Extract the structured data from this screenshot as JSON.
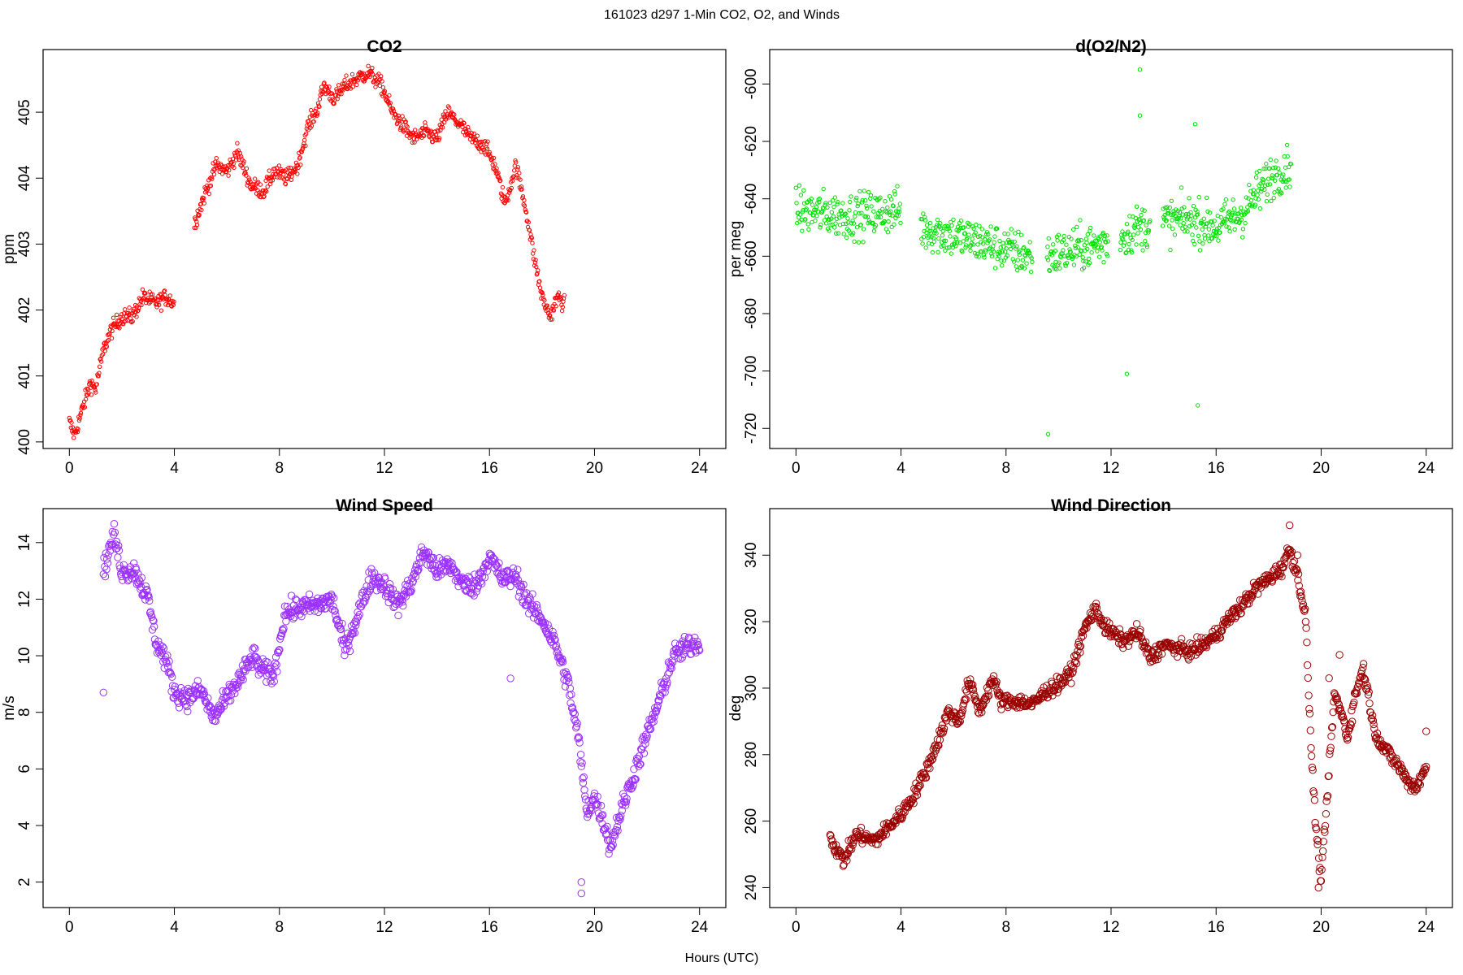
{
  "figure": {
    "title": "161023   d297   1-Min CO2, O2, and Winds",
    "xlabel": "Hours (UTC)"
  },
  "chart_data": [
    {
      "id": "co2",
      "type": "scatter",
      "title": "CO2",
      "xlabel": "",
      "ylabel": "ppm",
      "xlim": [
        -1,
        25
      ],
      "ylim": [
        399.9,
        405.95
      ],
      "xticks": [
        0,
        4,
        8,
        12,
        16,
        20,
        24
      ],
      "yticks": [
        400,
        401,
        402,
        403,
        404,
        405
      ],
      "color": "#ff0000",
      "marker_r": 2.2,
      "dense_count": 900,
      "x_range": [
        0.0,
        18.85
      ],
      "gaps": [
        [
          4.0,
          4.75
        ]
      ],
      "noise": 0.18,
      "profile": [
        [
          0.0,
          400.3
        ],
        [
          0.2,
          400.1
        ],
        [
          0.5,
          400.5
        ],
        [
          0.8,
          400.9
        ],
        [
          1.0,
          400.8
        ],
        [
          1.3,
          401.4
        ],
        [
          1.6,
          401.7
        ],
        [
          2.0,
          401.9
        ],
        [
          2.4,
          401.9
        ],
        [
          2.8,
          402.2
        ],
        [
          3.3,
          402.1
        ],
        [
          3.7,
          402.2
        ],
        [
          4.0,
          402.1
        ],
        [
          4.75,
          403.3
        ],
        [
          5.2,
          403.8
        ],
        [
          5.6,
          404.2
        ],
        [
          6.0,
          404.1
        ],
        [
          6.4,
          404.4
        ],
        [
          6.9,
          403.9
        ],
        [
          7.4,
          403.8
        ],
        [
          7.8,
          404.1
        ],
        [
          8.3,
          404.0
        ],
        [
          8.7,
          404.2
        ],
        [
          9.1,
          404.8
        ],
        [
          9.4,
          405.0
        ],
        [
          9.7,
          405.4
        ],
        [
          10.1,
          405.2
        ],
        [
          10.5,
          405.4
        ],
        [
          10.9,
          405.5
        ],
        [
          11.4,
          405.6
        ],
        [
          11.9,
          405.4
        ],
        [
          12.3,
          405.0
        ],
        [
          12.7,
          404.8
        ],
        [
          13.1,
          404.6
        ],
        [
          13.6,
          404.7
        ],
        [
          14.0,
          404.6
        ],
        [
          14.4,
          405.0
        ],
        [
          14.9,
          404.8
        ],
        [
          15.3,
          404.6
        ],
        [
          15.8,
          404.5
        ],
        [
          16.2,
          404.2
        ],
        [
          16.6,
          403.6
        ],
        [
          17.0,
          404.2
        ],
        [
          17.4,
          403.5
        ],
        [
          17.7,
          402.8
        ],
        [
          18.0,
          402.2
        ],
        [
          18.3,
          401.9
        ],
        [
          18.6,
          402.2
        ],
        [
          18.85,
          402.1
        ]
      ],
      "outliers": []
    },
    {
      "id": "o2n2",
      "type": "scatter",
      "title": "d(O2/N2)",
      "xlabel": "",
      "ylabel": "per meg",
      "xlim": [
        -1,
        25
      ],
      "ylim": [
        -727,
        -588
      ],
      "xticks": [
        0,
        4,
        8,
        12,
        16,
        20,
        24
      ],
      "yticks": [
        -720,
        -700,
        -680,
        -660,
        -640,
        -620,
        -600
      ],
      "color": "#00e000",
      "marker_r": 2.2,
      "dense_count": 900,
      "x_range": [
        0.0,
        18.85
      ],
      "gaps": [
        [
          4.0,
          4.75
        ],
        [
          9.0,
          9.55
        ],
        [
          11.9,
          12.35
        ],
        [
          13.5,
          13.95
        ]
      ],
      "noise": 11,
      "profile": [
        [
          0.0,
          -644
        ],
        [
          2.0,
          -646
        ],
        [
          4.0,
          -644
        ],
        [
          4.75,
          -650
        ],
        [
          7.0,
          -655
        ],
        [
          9.0,
          -660
        ],
        [
          9.55,
          -660
        ],
        [
          11.0,
          -657
        ],
        [
          12.0,
          -655
        ],
        [
          13.0,
          -650
        ],
        [
          14.0,
          -648
        ],
        [
          15.0,
          -647
        ],
        [
          16.0,
          -650
        ],
        [
          17.0,
          -645
        ],
        [
          18.0,
          -633
        ],
        [
          18.85,
          -628
        ]
      ],
      "outliers": [
        [
          13.1,
          -595
        ],
        [
          13.1,
          -611
        ],
        [
          12.6,
          -701
        ],
        [
          9.6,
          -722
        ],
        [
          15.3,
          -712
        ],
        [
          15.2,
          -614
        ]
      ]
    },
    {
      "id": "wspd",
      "type": "scatter",
      "title": "Wind Speed",
      "xlabel": "",
      "ylabel": "m/s",
      "xlim": [
        -1,
        25
      ],
      "ylim": [
        1.1,
        15.2
      ],
      "xticks": [
        0,
        4,
        8,
        12,
        16,
        20,
        24
      ],
      "yticks": [
        2,
        4,
        6,
        8,
        10,
        12,
        14
      ],
      "color": "#9b30ff",
      "marker_r": 4.2,
      "dense_count": 1000,
      "x_range": [
        1.3,
        24.0
      ],
      "gaps": [],
      "noise": 0.55,
      "profile": [
        [
          1.3,
          13.0
        ],
        [
          1.7,
          14.3
        ],
        [
          2.0,
          13.0
        ],
        [
          2.5,
          13.0
        ],
        [
          3.0,
          12.0
        ],
        [
          3.3,
          10.5
        ],
        [
          3.7,
          9.8
        ],
        [
          4.0,
          8.7
        ],
        [
          4.5,
          8.5
        ],
        [
          5.0,
          8.8
        ],
        [
          5.5,
          7.8
        ],
        [
          6.0,
          8.5
        ],
        [
          6.5,
          9.2
        ],
        [
          7.0,
          10.0
        ],
        [
          7.3,
          9.5
        ],
        [
          7.8,
          9.3
        ],
        [
          8.2,
          11.5
        ],
        [
          8.8,
          11.7
        ],
        [
          9.5,
          11.8
        ],
        [
          10.0,
          12.0
        ],
        [
          10.5,
          10.2
        ],
        [
          11.0,
          11.5
        ],
        [
          11.5,
          12.8
        ],
        [
          12.0,
          12.5
        ],
        [
          12.5,
          11.8
        ],
        [
          13.0,
          12.5
        ],
        [
          13.5,
          13.7
        ],
        [
          14.0,
          13.0
        ],
        [
          14.5,
          13.2
        ],
        [
          15.0,
          12.5
        ],
        [
          15.5,
          12.5
        ],
        [
          16.0,
          13.5
        ],
        [
          16.5,
          12.7
        ],
        [
          17.0,
          12.8
        ],
        [
          17.5,
          11.8
        ],
        [
          18.0,
          11.3
        ],
        [
          18.5,
          10.4
        ],
        [
          19.0,
          9.0
        ],
        [
          19.4,
          7.0
        ],
        [
          19.7,
          4.5
        ],
        [
          20.0,
          5.0
        ],
        [
          20.4,
          4.0
        ],
        [
          20.6,
          3.2
        ],
        [
          21.0,
          4.5
        ],
        [
          21.5,
          5.8
        ],
        [
          22.0,
          7.2
        ],
        [
          22.5,
          8.5
        ],
        [
          23.0,
          10.0
        ],
        [
          23.5,
          10.3
        ],
        [
          24.0,
          10.5
        ]
      ],
      "outliers": [
        [
          1.3,
          8.7
        ],
        [
          19.5,
          1.6
        ],
        [
          19.5,
          2.0
        ],
        [
          16.8,
          9.2
        ]
      ]
    },
    {
      "id": "wdir",
      "type": "scatter",
      "title": "Wind Direction",
      "xlabel": "",
      "ylabel": "deg",
      "xlim": [
        -1,
        25
      ],
      "ylim": [
        234,
        354
      ],
      "xticks": [
        0,
        4,
        8,
        12,
        16,
        20,
        24
      ],
      "yticks": [
        240,
        260,
        280,
        300,
        320,
        340
      ],
      "color": "#9b0000",
      "marker_r": 4.2,
      "dense_count": 1000,
      "x_range": [
        1.3,
        24.0
      ],
      "gaps": [],
      "noise": 3.2,
      "profile": [
        [
          1.3,
          255
        ],
        [
          1.8,
          248
        ],
        [
          2.3,
          256
        ],
        [
          3.0,
          254
        ],
        [
          3.5,
          258
        ],
        [
          4.0,
          262
        ],
        [
          4.5,
          268
        ],
        [
          5.0,
          276
        ],
        [
          5.5,
          286
        ],
        [
          5.8,
          293
        ],
        [
          6.2,
          290
        ],
        [
          6.6,
          302
        ],
        [
          7.0,
          293
        ],
        [
          7.5,
          303
        ],
        [
          7.8,
          296
        ],
        [
          8.5,
          296
        ],
        [
          9.0,
          295
        ],
        [
          9.5,
          299
        ],
        [
          10.0,
          301
        ],
        [
          10.5,
          305
        ],
        [
          11.0,
          318
        ],
        [
          11.4,
          324
        ],
        [
          11.8,
          318
        ],
        [
          12.5,
          314
        ],
        [
          13.0,
          317
        ],
        [
          13.5,
          309
        ],
        [
          14.0,
          313
        ],
        [
          14.5,
          312
        ],
        [
          15.0,
          311
        ],
        [
          15.5,
          313
        ],
        [
          16.0,
          316
        ],
        [
          16.5,
          321
        ],
        [
          17.0,
          325
        ],
        [
          17.5,
          330
        ],
        [
          18.0,
          333
        ],
        [
          18.5,
          336
        ],
        [
          18.8,
          342
        ],
        [
          19.1,
          334
        ],
        [
          19.4,
          322
        ],
        [
          19.6,
          285
        ],
        [
          19.8,
          258
        ],
        [
          20.0,
          242
        ],
        [
          20.3,
          275
        ],
        [
          20.5,
          298
        ],
        [
          20.8,
          292
        ],
        [
          21.0,
          285
        ],
        [
          21.3,
          298
        ],
        [
          21.6,
          306
        ],
        [
          21.8,
          298
        ],
        [
          22.0,
          288
        ],
        [
          22.3,
          283
        ],
        [
          22.6,
          280
        ],
        [
          23.0,
          276
        ],
        [
          23.3,
          272
        ],
        [
          23.6,
          270
        ],
        [
          24.0,
          276
        ]
      ],
      "outliers": [
        [
          18.8,
          349
        ],
        [
          19.1,
          340
        ],
        [
          19.9,
          240
        ],
        [
          20.3,
          303
        ],
        [
          20.7,
          310
        ],
        [
          24.0,
          287
        ]
      ]
    }
  ]
}
